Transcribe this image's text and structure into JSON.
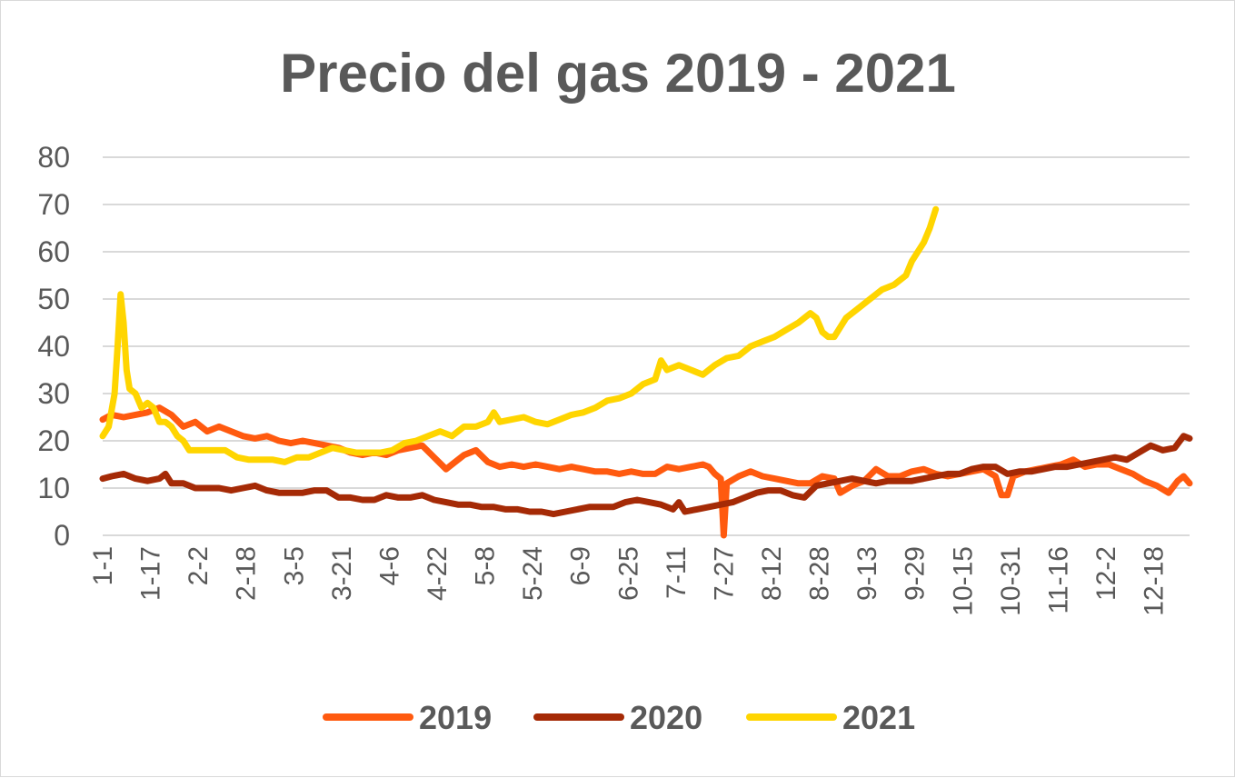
{
  "chart_data": {
    "type": "line",
    "title": "Precio del gas 2019 - 2021",
    "xlabel": "",
    "ylabel": "",
    "ylim": [
      0,
      80
    ],
    "yticks": [
      "0",
      "10",
      "20",
      "30",
      "40",
      "50",
      "60",
      "70",
      "80"
    ],
    "x_tick_labels": [
      "1-1",
      "1-17",
      "2-2",
      "2-18",
      "3-5",
      "3-21",
      "4-6",
      "4-22",
      "5-8",
      "5-24",
      "6-9",
      "6-25",
      "7-11",
      "7-27",
      "8-12",
      "8-28",
      "9-13",
      "9-29",
      "10-15",
      "10-31",
      "11-16",
      "12-2",
      "12-18"
    ],
    "grid": true,
    "legend_position": "bottom",
    "series": [
      {
        "name": "2019",
        "color": "#ff5a0f",
        "points": [
          [
            1,
            24.5
          ],
          [
            4,
            25.5
          ],
          [
            8,
            25
          ],
          [
            12,
            25.5
          ],
          [
            16,
            26
          ],
          [
            20,
            27
          ],
          [
            24,
            25.5
          ],
          [
            28,
            23
          ],
          [
            32,
            24
          ],
          [
            36,
            22
          ],
          [
            40,
            23
          ],
          [
            44,
            22
          ],
          [
            48,
            21
          ],
          [
            52,
            20.5
          ],
          [
            56,
            21
          ],
          [
            60,
            20
          ],
          [
            64,
            19.5
          ],
          [
            68,
            20
          ],
          [
            72,
            19.5
          ],
          [
            76,
            19
          ],
          [
            80,
            18.5
          ],
          [
            84,
            17.5
          ],
          [
            88,
            17
          ],
          [
            92,
            17.5
          ],
          [
            96,
            17
          ],
          [
            100,
            18
          ],
          [
            104,
            18.5
          ],
          [
            108,
            19
          ],
          [
            112,
            16.5
          ],
          [
            116,
            14
          ],
          [
            118,
            15
          ],
          [
            122,
            17
          ],
          [
            126,
            18
          ],
          [
            130,
            15.5
          ],
          [
            134,
            14.5
          ],
          [
            138,
            15
          ],
          [
            142,
            14.5
          ],
          [
            146,
            15
          ],
          [
            150,
            14.5
          ],
          [
            154,
            14
          ],
          [
            158,
            14.5
          ],
          [
            162,
            14
          ],
          [
            166,
            13.5
          ],
          [
            170,
            13.5
          ],
          [
            174,
            13
          ],
          [
            178,
            13.5
          ],
          [
            182,
            13
          ],
          [
            186,
            13
          ],
          [
            190,
            14.5
          ],
          [
            194,
            14
          ],
          [
            198,
            14.5
          ],
          [
            202,
            15
          ],
          [
            204,
            14.5
          ],
          [
            206,
            13
          ],
          [
            208,
            12
          ],
          [
            209,
            0
          ],
          [
            210,
            11
          ],
          [
            214,
            12.5
          ],
          [
            218,
            13.5
          ],
          [
            222,
            12.5
          ],
          [
            226,
            12
          ],
          [
            230,
            11.5
          ],
          [
            234,
            11
          ],
          [
            238,
            11
          ],
          [
            242,
            12.5
          ],
          [
            246,
            12
          ],
          [
            248,
            9
          ],
          [
            252,
            10.5
          ],
          [
            256,
            11.5
          ],
          [
            260,
            14
          ],
          [
            264,
            12.5
          ],
          [
            268,
            12.5
          ],
          [
            272,
            13.5
          ],
          [
            276,
            14
          ],
          [
            280,
            13
          ],
          [
            284,
            12.5
          ],
          [
            288,
            13
          ],
          [
            292,
            13.5
          ],
          [
            296,
            14
          ],
          [
            300,
            12.5
          ],
          [
            302,
            8.5
          ],
          [
            304,
            8.5
          ],
          [
            306,
            12.5
          ],
          [
            310,
            13.5
          ],
          [
            314,
            14
          ],
          [
            318,
            14.5
          ],
          [
            322,
            15
          ],
          [
            326,
            16
          ],
          [
            330,
            14.5
          ],
          [
            334,
            15
          ],
          [
            338,
            15
          ],
          [
            342,
            14
          ],
          [
            346,
            13
          ],
          [
            350,
            11.5
          ],
          [
            354,
            10.5
          ],
          [
            358,
            9
          ],
          [
            361,
            11.5
          ],
          [
            363,
            12.5
          ],
          [
            365,
            11
          ]
        ]
      },
      {
        "name": "2020",
        "color": "#a52a06",
        "points": [
          [
            1,
            12
          ],
          [
            4,
            12.5
          ],
          [
            8,
            13
          ],
          [
            12,
            12
          ],
          [
            16,
            11.5
          ],
          [
            20,
            12
          ],
          [
            22,
            13
          ],
          [
            24,
            11
          ],
          [
            28,
            11
          ],
          [
            32,
            10
          ],
          [
            36,
            10
          ],
          [
            40,
            10
          ],
          [
            44,
            9.5
          ],
          [
            48,
            10
          ],
          [
            52,
            10.5
          ],
          [
            56,
            9.5
          ],
          [
            60,
            9
          ],
          [
            64,
            9
          ],
          [
            68,
            9
          ],
          [
            72,
            9.5
          ],
          [
            76,
            9.5
          ],
          [
            80,
            8
          ],
          [
            84,
            8
          ],
          [
            88,
            7.5
          ],
          [
            92,
            7.5
          ],
          [
            96,
            8.5
          ],
          [
            100,
            8
          ],
          [
            104,
            8
          ],
          [
            108,
            8.5
          ],
          [
            112,
            7.5
          ],
          [
            116,
            7
          ],
          [
            120,
            6.5
          ],
          [
            124,
            6.5
          ],
          [
            128,
            6
          ],
          [
            132,
            6
          ],
          [
            136,
            5.5
          ],
          [
            140,
            5.5
          ],
          [
            144,
            5
          ],
          [
            148,
            5
          ],
          [
            152,
            4.5
          ],
          [
            156,
            5
          ],
          [
            160,
            5.5
          ],
          [
            164,
            6
          ],
          [
            168,
            6
          ],
          [
            172,
            6
          ],
          [
            176,
            7
          ],
          [
            180,
            7.5
          ],
          [
            184,
            7
          ],
          [
            188,
            6.5
          ],
          [
            192,
            5.5
          ],
          [
            194,
            7
          ],
          [
            196,
            5
          ],
          [
            200,
            5.5
          ],
          [
            204,
            6
          ],
          [
            208,
            6.5
          ],
          [
            212,
            7
          ],
          [
            216,
            8
          ],
          [
            220,
            9
          ],
          [
            224,
            9.5
          ],
          [
            228,
            9.5
          ],
          [
            232,
            8.5
          ],
          [
            236,
            8
          ],
          [
            240,
            10.5
          ],
          [
            244,
            11
          ],
          [
            248,
            11.5
          ],
          [
            252,
            12
          ],
          [
            256,
            11.5
          ],
          [
            260,
            11
          ],
          [
            264,
            11.5
          ],
          [
            268,
            11.5
          ],
          [
            272,
            11.5
          ],
          [
            276,
            12
          ],
          [
            280,
            12.5
          ],
          [
            284,
            13
          ],
          [
            288,
            13
          ],
          [
            292,
            14
          ],
          [
            296,
            14.5
          ],
          [
            300,
            14.5
          ],
          [
            304,
            13
          ],
          [
            308,
            13.5
          ],
          [
            312,
            13.5
          ],
          [
            316,
            14
          ],
          [
            320,
            14.5
          ],
          [
            324,
            14.5
          ],
          [
            328,
            15
          ],
          [
            332,
            15.5
          ],
          [
            336,
            16
          ],
          [
            340,
            16.5
          ],
          [
            344,
            16
          ],
          [
            348,
            17.5
          ],
          [
            352,
            19
          ],
          [
            356,
            18
          ],
          [
            360,
            18.5
          ],
          [
            363,
            21
          ],
          [
            365,
            20.5
          ]
        ]
      },
      {
        "name": "2021",
        "color": "#ffd500",
        "points": [
          [
            1,
            21
          ],
          [
            3,
            23
          ],
          [
            5,
            30
          ],
          [
            6,
            40
          ],
          [
            7,
            51
          ],
          [
            8,
            45
          ],
          [
            9,
            35
          ],
          [
            10,
            31
          ],
          [
            12,
            30
          ],
          [
            14,
            27
          ],
          [
            16,
            28
          ],
          [
            18,
            27
          ],
          [
            20,
            24
          ],
          [
            22,
            24
          ],
          [
            24,
            23
          ],
          [
            26,
            21
          ],
          [
            28,
            20
          ],
          [
            30,
            18
          ],
          [
            34,
            18
          ],
          [
            38,
            18
          ],
          [
            42,
            18
          ],
          [
            46,
            16.5
          ],
          [
            50,
            16
          ],
          [
            54,
            16
          ],
          [
            58,
            16
          ],
          [
            62,
            15.5
          ],
          [
            66,
            16.5
          ],
          [
            70,
            16.5
          ],
          [
            74,
            17.5
          ],
          [
            78,
            18.5
          ],
          [
            82,
            18
          ],
          [
            86,
            17.5
          ],
          [
            90,
            17.5
          ],
          [
            94,
            17.5
          ],
          [
            98,
            18
          ],
          [
            102,
            19.5
          ],
          [
            106,
            20
          ],
          [
            110,
            21
          ],
          [
            114,
            22
          ],
          [
            118,
            21
          ],
          [
            122,
            23
          ],
          [
            126,
            23
          ],
          [
            130,
            24
          ],
          [
            132,
            26
          ],
          [
            134,
            24
          ],
          [
            138,
            24.5
          ],
          [
            142,
            25
          ],
          [
            146,
            24
          ],
          [
            150,
            23.5
          ],
          [
            154,
            24.5
          ],
          [
            158,
            25.5
          ],
          [
            162,
            26
          ],
          [
            166,
            27
          ],
          [
            170,
            28.5
          ],
          [
            174,
            29
          ],
          [
            178,
            30
          ],
          [
            182,
            32
          ],
          [
            186,
            33
          ],
          [
            188,
            37
          ],
          [
            190,
            35
          ],
          [
            194,
            36
          ],
          [
            198,
            35
          ],
          [
            202,
            34
          ],
          [
            206,
            36
          ],
          [
            210,
            37.5
          ],
          [
            214,
            38
          ],
          [
            218,
            40
          ],
          [
            222,
            41
          ],
          [
            226,
            42
          ],
          [
            230,
            43.5
          ],
          [
            234,
            45
          ],
          [
            238,
            47
          ],
          [
            240,
            46
          ],
          [
            242,
            43
          ],
          [
            244,
            42
          ],
          [
            246,
            42
          ],
          [
            250,
            46
          ],
          [
            254,
            48
          ],
          [
            258,
            50
          ],
          [
            262,
            52
          ],
          [
            266,
            53
          ],
          [
            270,
            55
          ],
          [
            272,
            58
          ],
          [
            274,
            60
          ],
          [
            276,
            62
          ],
          [
            278,
            65
          ],
          [
            280,
            69
          ]
        ]
      }
    ]
  }
}
